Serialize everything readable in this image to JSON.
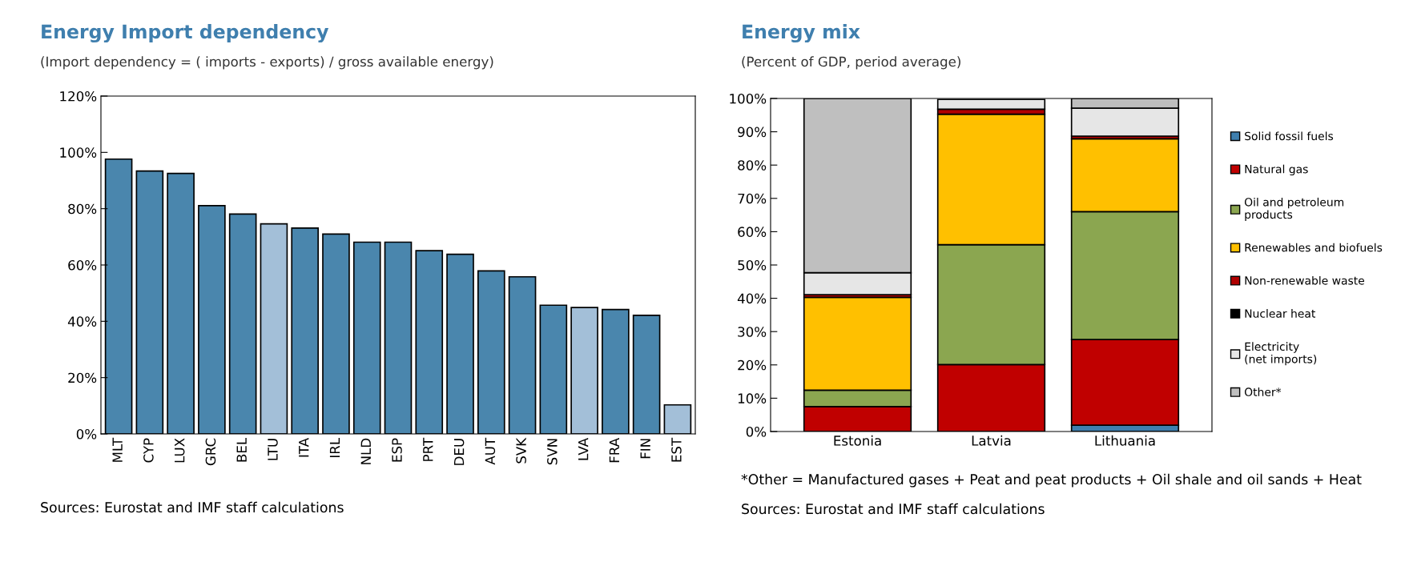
{
  "chart_data": [
    {
      "type": "bar",
      "title": "Energy Import dependency",
      "subtitle": "(Import dependency = ( imports - exports) / gross available energy)",
      "categories": [
        "MLT",
        "CYP",
        "LUX",
        "GRC",
        "BEL",
        "LTU",
        "ITA",
        "IRL",
        "NLD",
        "ESP",
        "PRT",
        "DEU",
        "AUT",
        "SVK",
        "SVN",
        "LVA",
        "FRA",
        "FIN",
        "EST"
      ],
      "values": [
        97.6,
        93.4,
        92.5,
        81.1,
        78.1,
        74.6,
        73.1,
        71.0,
        68.1,
        68.1,
        65.1,
        63.8,
        57.9,
        55.8,
        45.7,
        44.9,
        44.2,
        42.1,
        10.3
      ],
      "colors": [
        "#4a86ad",
        "#4a86ad",
        "#4a86ad",
        "#4a86ad",
        "#4a86ad",
        "#a3bfd8",
        "#4a86ad",
        "#4a86ad",
        "#4a86ad",
        "#4a86ad",
        "#4a86ad",
        "#4a86ad",
        "#4a86ad",
        "#4a86ad",
        "#4a86ad",
        "#a3bfd8",
        "#4a86ad",
        "#4a86ad",
        "#a3bfd8"
      ],
      "ylim": [
        0,
        120
      ],
      "yticks": [
        {
          "value": 0,
          "label": "0%"
        },
        {
          "value": 20,
          "label": "20%"
        },
        {
          "value": 40,
          "label": "40%"
        },
        {
          "value": 60,
          "label": "60%"
        },
        {
          "value": 80,
          "label": "80%"
        },
        {
          "value": 100,
          "label": "100%"
        },
        {
          "value": 120,
          "label": "120%"
        }
      ],
      "grid": false,
      "legend": false,
      "annotations": [
        "Sources: Eurostat and IMF staff calculations"
      ]
    },
    {
      "type": "bar",
      "stacked": true,
      "title": "Energy mix",
      "subtitle": "(Percent of GDP, period average)",
      "categories": [
        "Estonia",
        "Latvia",
        "Lithuania"
      ],
      "series": [
        {
          "name": "Solid fossil fuels",
          "color": "#3f7fae",
          "values": [
            0,
            null,
            1.9
          ]
        },
        {
          "name": "Natural gas",
          "color": "#c00000",
          "values": [
            7.5,
            20.1,
            25.7
          ]
        },
        {
          "name": "Oil and petroleum\nproducts",
          "color": "#8ba650",
          "values": [
            4.9,
            36.0,
            38.4
          ]
        },
        {
          "name": "Renewables and biofuels",
          "color": "#ffc000",
          "values": [
            27.9,
            39.2,
            21.9
          ]
        },
        {
          "name": "Non-renewable waste",
          "color": "#b00000",
          "values": [
            0.8,
            1.5,
            0.8
          ]
        },
        {
          "name": "Nuclear heat",
          "color": "#000000",
          "values": [
            0,
            0,
            0
          ]
        },
        {
          "name": "Electricity\n(net imports)",
          "color": "#e6e6e6",
          "values": [
            6.6,
            2.9,
            8.4
          ]
        },
        {
          "name": "Other*",
          "color": "#bfbfbf",
          "values": [
            52.3,
            0,
            2.9
          ]
        }
      ],
      "ylim": [
        0,
        100
      ],
      "yticks": [
        {
          "value": 0,
          "label": "0%"
        },
        {
          "value": 10,
          "label": "10%"
        },
        {
          "value": 20,
          "label": "20%"
        },
        {
          "value": 30,
          "label": "30%"
        },
        {
          "value": 40,
          "label": "40%"
        },
        {
          "value": 50,
          "label": "50%"
        },
        {
          "value": 60,
          "label": "60%"
        },
        {
          "value": 70,
          "label": "70%"
        },
        {
          "value": 80,
          "label": "80%"
        },
        {
          "value": 90,
          "label": "90%"
        },
        {
          "value": 100,
          "label": "100%"
        }
      ],
      "grid": false,
      "legend": "right",
      "annotations": [
        "*Other = Manufactured gases + Peat and peat products + Oil shale and oil sands + Heat",
        "Sources: Eurostat and IMF staff calculations"
      ]
    }
  ]
}
